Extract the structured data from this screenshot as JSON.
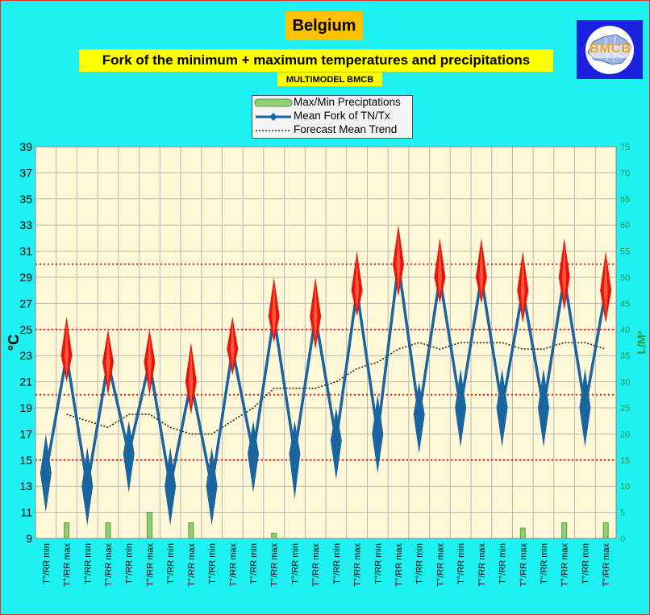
{
  "title": "Belgium",
  "subtitle": "Fork of the minimum + maximum temperatures and precipitations",
  "source": "MULTIMODEL BMCB",
  "logo_text": "BMCB",
  "legend": {
    "precip": "Max/Min Preciptations",
    "fork": "Mean Fork of TN/Tx",
    "trend": "Forecast Mean Trend"
  },
  "colors": {
    "background": "#1ef1f1",
    "plot_area": "#fff8d6",
    "fork_line": "#1a65a0",
    "max_marker": "#e81212",
    "precip_bar": "#8fcf72",
    "ref_line": "#e02020",
    "grid": "#b8b8b8",
    "right_axis": "#1f9a44"
  },
  "chart_data": {
    "type": "line",
    "ylabel": "°C",
    "y2label": "L/M²",
    "ylim": [
      9,
      39
    ],
    "yticks": [
      9,
      11,
      13,
      15,
      17,
      19,
      21,
      23,
      25,
      27,
      29,
      31,
      33,
      35,
      37,
      39
    ],
    "y2lim": [
      0,
      75
    ],
    "y2ticks": [
      0,
      5,
      10,
      15,
      20,
      25,
      30,
      35,
      40,
      45,
      50,
      55,
      60,
      65,
      70,
      75
    ],
    "categories": [
      "T°/RR min",
      "T°/RR max",
      "T°/RR min",
      "T°/RR max",
      "T°/RR min",
      "T°/RR max",
      "T°/RR min",
      "T°/RR max",
      "T°/RR min",
      "T°/RR max",
      "T°/RR min",
      "T°/RR max",
      "T°/RR min",
      "T°/RR max",
      "T°/RR min",
      "T°/RR max",
      "T°/RR min",
      "T°/RR max",
      "T°/RR min",
      "T°/RR max",
      "T°/RR min",
      "T°/RR max",
      "T°/RR min",
      "T°/RR max",
      "T°/RR min",
      "T°/RR max",
      "T°/RR min",
      "T°/RR max"
    ],
    "series": [
      {
        "name": "Mean Fork of TN/Tx",
        "values": [
          14,
          23,
          13,
          22.5,
          15.5,
          22.5,
          13,
          21,
          13,
          23.5,
          15.5,
          26,
          15.5,
          26,
          16.5,
          28,
          17,
          30,
          18.5,
          29,
          19,
          29,
          19,
          28,
          19,
          29,
          19,
          28
        ],
        "low": [
          11,
          21,
          10,
          20,
          12.5,
          20,
          10,
          18.5,
          10,
          21.5,
          12.5,
          24,
          12,
          23.5,
          13.5,
          26,
          14,
          27.5,
          15.5,
          27,
          16,
          27,
          16,
          25.5,
          16,
          26.5,
          16,
          25.5
        ],
        "high": [
          17,
          26,
          16,
          25,
          18,
          25,
          16,
          24,
          16,
          26,
          18,
          29,
          18,
          29,
          19,
          31,
          20,
          33,
          21,
          32,
          22,
          32,
          22,
          31,
          22,
          32,
          22,
          31
        ]
      },
      {
        "name": "Max/Min Preciptations",
        "axis": "right",
        "values": [
          0,
          3,
          0,
          3,
          0,
          5,
          0,
          3,
          0,
          0,
          0,
          1,
          0,
          0,
          0,
          0,
          0,
          0,
          0,
          0,
          0,
          0,
          0,
          2,
          0,
          3,
          0,
          3
        ]
      },
      {
        "name": "Forecast Mean Trend",
        "values": [
          null,
          18.5,
          18,
          17.5,
          18.5,
          18.5,
          17.5,
          17,
          17,
          18,
          19,
          20.5,
          20.5,
          20.5,
          21,
          22,
          22.5,
          23.5,
          24,
          23.5,
          24,
          24,
          24,
          23.5,
          23.5,
          24,
          24,
          23.5
        ]
      }
    ],
    "reference_lines": [
      15,
      20,
      25,
      30
    ],
    "grid": true,
    "legend_position": "top-center"
  }
}
